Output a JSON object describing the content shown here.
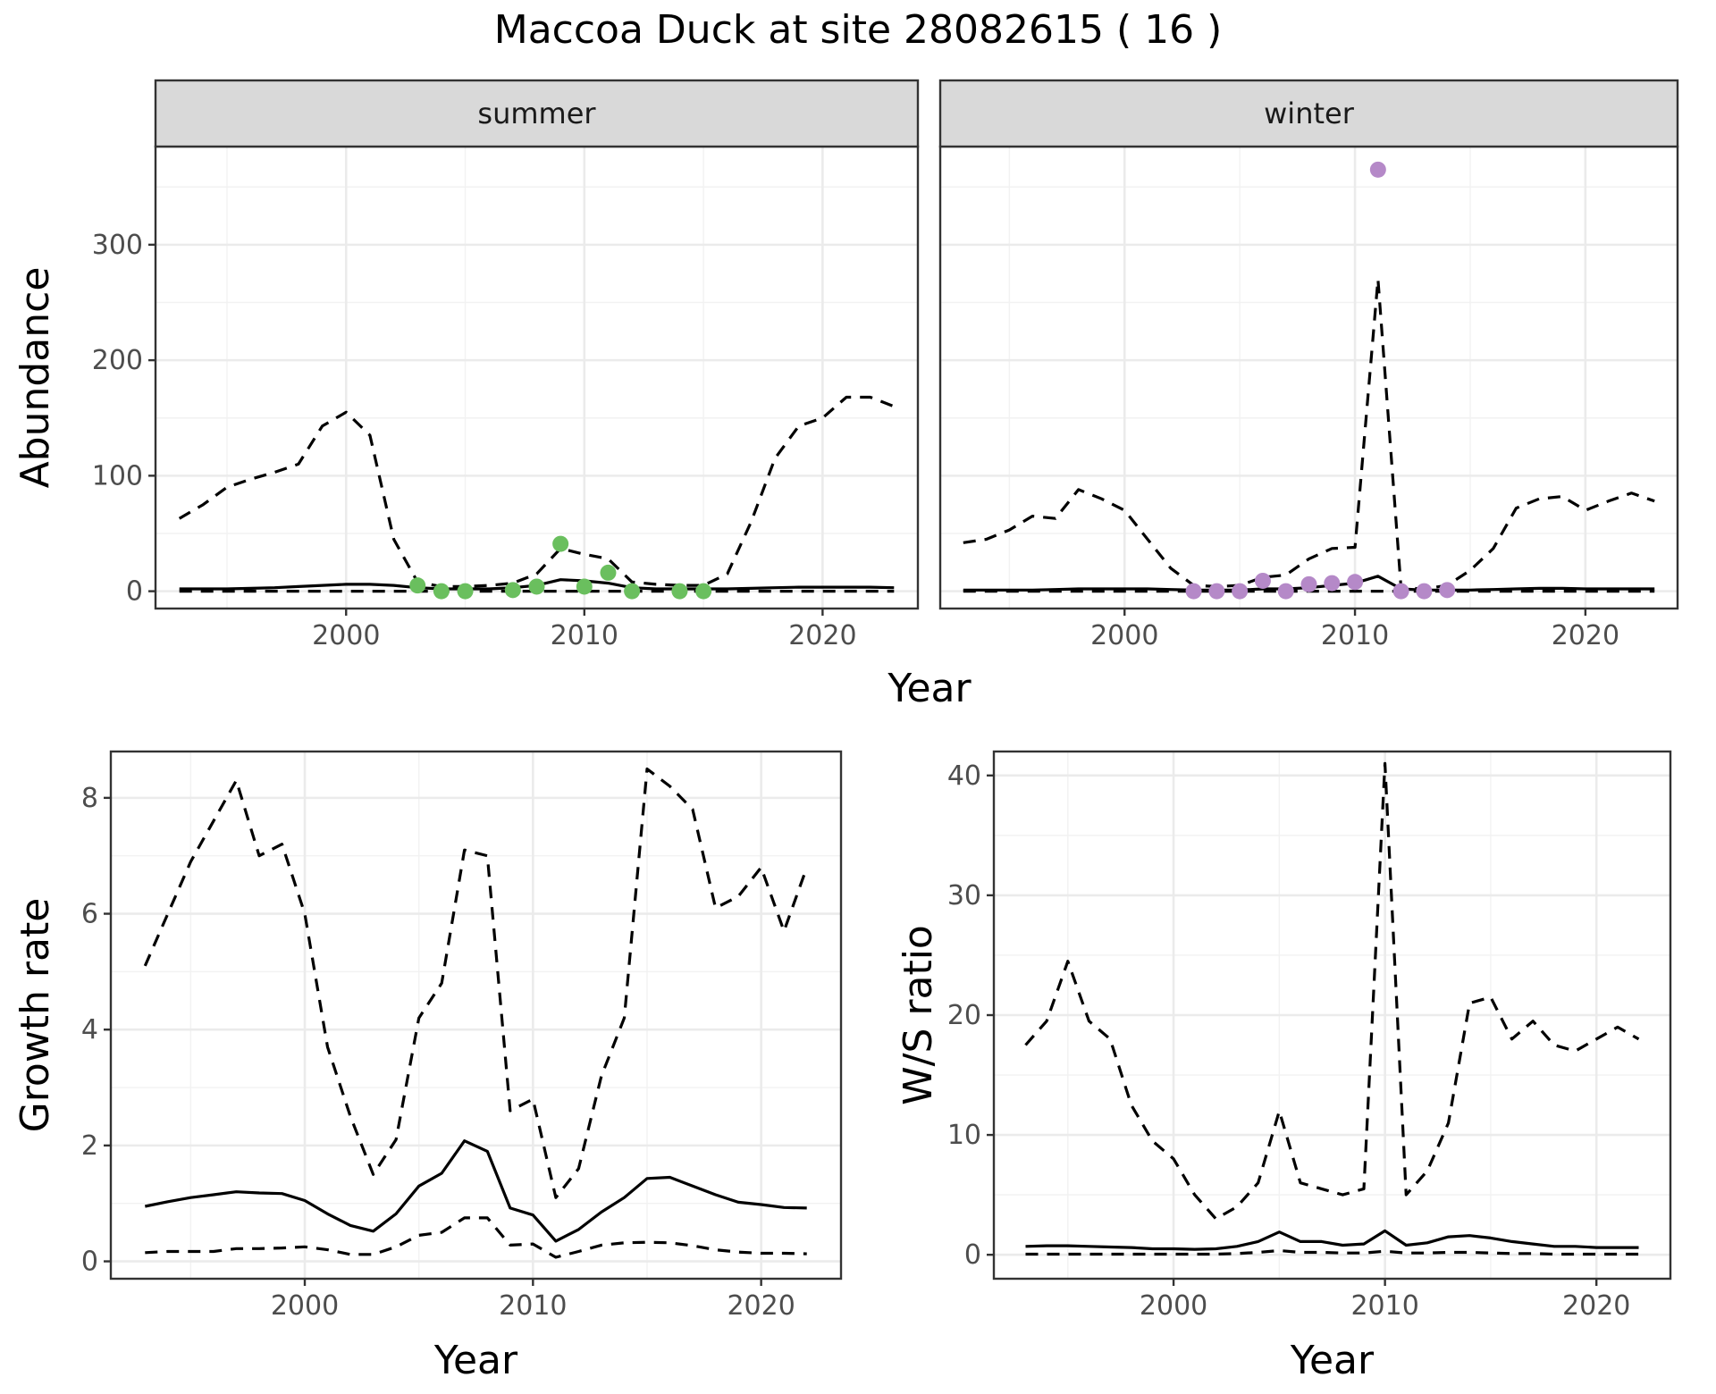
{
  "figure": {
    "title": "Maccoa Duck at site 28082615 ( 16 )"
  },
  "chart_data": [
    {
      "type": "line",
      "id": "summer",
      "facet_label": "summer",
      "xlabel": "",
      "ylabel": "Abundance",
      "xlim": [
        1992,
        2024
      ],
      "ylim": [
        -15,
        385
      ],
      "xticks": [
        2000,
        2010,
        2020
      ],
      "yticks": [
        0,
        100,
        200,
        300
      ],
      "point_color": "#6abf5e",
      "series": [
        {
          "role": "upper",
          "style": "dashed",
          "x": [
            1993,
            1994,
            1995,
            1996,
            1997,
            1998,
            1999,
            2000,
            2001,
            2002,
            2003,
            2004,
            2005,
            2006,
            2007,
            2008,
            2009,
            2010,
            2011,
            2012,
            2013,
            2014,
            2015,
            2016,
            2017,
            2018,
            2019,
            2020,
            2021,
            2022,
            2023
          ],
          "values": [
            63,
            75,
            90,
            97,
            103,
            110,
            143,
            155,
            135,
            45,
            8,
            4,
            4,
            5,
            7,
            15,
            37,
            32,
            28,
            8,
            6,
            5,
            5,
            15,
            60,
            115,
            143,
            150,
            168,
            168,
            160
          ]
        },
        {
          "role": "mean",
          "style": "solid",
          "x": [
            1993,
            1994,
            1995,
            1996,
            1997,
            1998,
            1999,
            2000,
            2001,
            2002,
            2003,
            2004,
            2005,
            2006,
            2007,
            2008,
            2009,
            2010,
            2011,
            2012,
            2013,
            2014,
            2015,
            2016,
            2017,
            2018,
            2019,
            2020,
            2021,
            2022,
            2023
          ],
          "values": [
            2,
            2,
            2,
            2.5,
            3,
            4,
            5,
            6,
            6,
            5,
            3,
            2,
            2,
            2,
            3,
            5,
            10,
            9,
            7,
            3,
            2,
            2,
            2,
            2,
            2.5,
            3,
            3.5,
            3.5,
            3.5,
            3.5,
            3
          ]
        },
        {
          "role": "lower",
          "style": "dashed",
          "x": [
            1993,
            1994,
            1995,
            1996,
            1997,
            1998,
            1999,
            2000,
            2001,
            2002,
            2003,
            2004,
            2005,
            2006,
            2007,
            2008,
            2009,
            2010,
            2011,
            2012,
            2013,
            2014,
            2015,
            2016,
            2017,
            2018,
            2019,
            2020,
            2021,
            2022,
            2023
          ],
          "values": [
            0,
            0,
            0,
            0,
            0,
            0,
            0,
            0,
            0,
            0,
            0,
            0,
            0,
            0,
            0,
            0,
            0,
            0,
            0,
            0,
            0,
            0,
            0,
            0,
            0,
            0,
            0,
            0,
            0,
            0,
            0
          ]
        }
      ],
      "points": {
        "x": [
          2003,
          2004,
          2005,
          2007,
          2008,
          2009,
          2010,
          2011,
          2012,
          2014,
          2015
        ],
        "values": [
          5,
          0,
          0,
          1,
          4,
          41,
          4,
          16,
          0,
          0,
          0
        ]
      }
    },
    {
      "type": "line",
      "id": "winter",
      "facet_label": "winter",
      "xlabel": "",
      "ylabel": "",
      "xlim": [
        1992,
        2024
      ],
      "ylim": [
        -15,
        385
      ],
      "xticks": [
        2000,
        2010,
        2020
      ],
      "yticks": [
        0,
        100,
        200,
        300
      ],
      "point_color": "#b589c8",
      "series": [
        {
          "role": "upper",
          "style": "dashed",
          "x": [
            1993,
            1994,
            1995,
            1996,
            1997,
            1998,
            1999,
            2000,
            2001,
            2002,
            2003,
            2004,
            2005,
            2006,
            2007,
            2008,
            2009,
            2010,
            2011,
            2012,
            2013,
            2014,
            2015,
            2016,
            2017,
            2018,
            2019,
            2020,
            2021,
            2022,
            2023
          ],
          "values": [
            42,
            45,
            53,
            65,
            63,
            88,
            80,
            70,
            45,
            20,
            5,
            4,
            5,
            12,
            14,
            28,
            37,
            38,
            270,
            3,
            2,
            5,
            18,
            37,
            72,
            80,
            82,
            70,
            78,
            85,
            78
          ]
        },
        {
          "role": "mean",
          "style": "solid",
          "x": [
            1993,
            1994,
            1995,
            1996,
            1997,
            1998,
            1999,
            2000,
            2001,
            2002,
            2003,
            2004,
            2005,
            2006,
            2007,
            2008,
            2009,
            2010,
            2011,
            2012,
            2013,
            2014,
            2015,
            2016,
            2017,
            2018,
            2019,
            2020,
            2021,
            2022,
            2023
          ],
          "values": [
            1,
            1,
            1,
            1,
            1.5,
            2,
            2,
            2,
            2,
            1.5,
            1,
            1,
            1,
            2,
            2,
            3,
            5,
            7,
            13,
            2,
            1,
            1,
            1,
            1.5,
            2,
            2.5,
            2.5,
            2,
            2,
            2,
            2
          ]
        },
        {
          "role": "lower",
          "style": "dashed",
          "x": [
            1993,
            1994,
            1995,
            1996,
            1997,
            1998,
            1999,
            2000,
            2001,
            2002,
            2003,
            2004,
            2005,
            2006,
            2007,
            2008,
            2009,
            2010,
            2011,
            2012,
            2013,
            2014,
            2015,
            2016,
            2017,
            2018,
            2019,
            2020,
            2021,
            2022,
            2023
          ],
          "values": [
            0,
            0,
            0,
            0,
            0,
            0,
            0,
            0,
            0,
            0,
            0,
            0,
            0,
            0,
            0,
            0,
            0,
            0,
            0,
            0,
            0,
            0,
            0,
            0,
            0,
            0,
            0,
            0,
            0,
            0,
            0
          ]
        }
      ],
      "points": {
        "x": [
          2003,
          2004,
          2005,
          2006,
          2007,
          2008,
          2009,
          2010,
          2011,
          2012,
          2013,
          2014
        ],
        "values": [
          0,
          0,
          0,
          9,
          0,
          6,
          7,
          8,
          365,
          0,
          0,
          1
        ]
      }
    },
    {
      "type": "line",
      "id": "growth",
      "xlabel": "Year",
      "ylabel": "Growth rate",
      "xlim": [
        1991.5,
        2023.5
      ],
      "ylim": [
        -0.3,
        8.8
      ],
      "xticks": [
        2000,
        2010,
        2020
      ],
      "yticks": [
        0,
        2,
        4,
        6,
        8
      ],
      "series": [
        {
          "role": "upper",
          "style": "dashed",
          "x": [
            1993,
            1994,
            1995,
            1996,
            1997,
            1998,
            1999,
            2000,
            2001,
            2002,
            2003,
            2004,
            2005,
            2006,
            2007,
            2008,
            2009,
            2010,
            2011,
            2012,
            2013,
            2014,
            2015,
            2016,
            2017,
            2018,
            2019,
            2020,
            2021,
            2022
          ],
          "values": [
            5.1,
            6,
            6.9,
            7.6,
            8.3,
            7,
            7.2,
            6,
            3.7,
            2.5,
            1.5,
            2.1,
            4.2,
            4.8,
            7.1,
            7,
            2.6,
            2.8,
            1.1,
            1.6,
            3.2,
            4.2,
            8.5,
            8.2,
            7.8,
            6.1,
            6.3,
            6.8,
            5.7,
            6.8
          ]
        },
        {
          "role": "mean",
          "style": "solid",
          "x": [
            1993,
            1994,
            1995,
            1996,
            1997,
            1998,
            1999,
            2000,
            2001,
            2002,
            2003,
            2004,
            2005,
            2006,
            2007,
            2008,
            2009,
            2010,
            2011,
            2012,
            2013,
            2014,
            2015,
            2016,
            2017,
            2018,
            2019,
            2020,
            2021,
            2022
          ],
          "values": [
            0.95,
            1.03,
            1.1,
            1.15,
            1.2,
            1.18,
            1.17,
            1.05,
            0.82,
            0.62,
            0.52,
            0.82,
            1.3,
            1.52,
            2.08,
            1.9,
            0.92,
            0.8,
            0.35,
            0.55,
            0.85,
            1.1,
            1.43,
            1.45,
            1.3,
            1.15,
            1.02,
            0.98,
            0.93,
            0.92
          ]
        },
        {
          "role": "lower",
          "style": "dashed",
          "x": [
            1993,
            1994,
            1995,
            1996,
            1997,
            1998,
            1999,
            2000,
            2001,
            2002,
            2003,
            2004,
            2005,
            2006,
            2007,
            2008,
            2009,
            2010,
            2011,
            2012,
            2013,
            2014,
            2015,
            2016,
            2017,
            2018,
            2019,
            2020,
            2021,
            2022
          ],
          "values": [
            0.15,
            0.17,
            0.17,
            0.17,
            0.22,
            0.22,
            0.23,
            0.25,
            0.2,
            0.12,
            0.12,
            0.25,
            0.45,
            0.5,
            0.75,
            0.75,
            0.28,
            0.3,
            0.07,
            0.17,
            0.28,
            0.32,
            0.33,
            0.32,
            0.27,
            0.2,
            0.16,
            0.14,
            0.14,
            0.13
          ]
        }
      ]
    },
    {
      "type": "line",
      "id": "ratio",
      "xlabel": "Year",
      "ylabel": "W/S ratio",
      "xlim": [
        1991.5,
        2023.5
      ],
      "ylim": [
        -2,
        42
      ],
      "xticks": [
        2000,
        2010,
        2020
      ],
      "yticks": [
        0,
        10,
        20,
        30,
        40
      ],
      "series": [
        {
          "role": "upper",
          "style": "dashed",
          "x": [
            1993,
            1994,
            1995,
            1996,
            1997,
            1998,
            1999,
            2000,
            2001,
            2002,
            2003,
            2004,
            2005,
            2006,
            2007,
            2008,
            2009,
            2010,
            2011,
            2012,
            2013,
            2014,
            2015,
            2016,
            2017,
            2018,
            2019,
            2020,
            2021,
            2022
          ],
          "values": [
            17.5,
            19.5,
            24.5,
            19.5,
            18,
            12.5,
            9.5,
            8,
            5,
            3,
            4,
            6,
            12,
            6,
            5.5,
            5,
            5.5,
            41,
            5,
            7,
            11,
            21,
            21.5,
            18,
            19.5,
            17.5,
            17,
            18,
            19,
            18
          ]
        },
        {
          "role": "mean",
          "style": "solid",
          "x": [
            1993,
            1994,
            1995,
            1996,
            1997,
            1998,
            1999,
            2000,
            2001,
            2002,
            2003,
            2004,
            2005,
            2006,
            2007,
            2008,
            2009,
            2010,
            2011,
            2012,
            2013,
            2014,
            2015,
            2016,
            2017,
            2018,
            2019,
            2020,
            2021,
            2022
          ],
          "values": [
            0.7,
            0.75,
            0.75,
            0.7,
            0.65,
            0.6,
            0.5,
            0.5,
            0.45,
            0.5,
            0.7,
            1.1,
            1.9,
            1.1,
            1.1,
            0.8,
            0.9,
            2,
            0.8,
            1,
            1.5,
            1.6,
            1.4,
            1.1,
            0.9,
            0.7,
            0.7,
            0.6,
            0.6,
            0.6
          ]
        },
        {
          "role": "lower",
          "style": "dashed",
          "x": [
            1993,
            1994,
            1995,
            1996,
            1997,
            1998,
            1999,
            2000,
            2001,
            2002,
            2003,
            2004,
            2005,
            2006,
            2007,
            2008,
            2009,
            2010,
            2011,
            2012,
            2013,
            2014,
            2015,
            2016,
            2017,
            2018,
            2019,
            2020,
            2021,
            2022
          ],
          "values": [
            0.05,
            0.05,
            0.05,
            0.05,
            0.05,
            0.05,
            0.05,
            0.05,
            0.05,
            0.05,
            0.1,
            0.2,
            0.35,
            0.2,
            0.2,
            0.15,
            0.15,
            0.3,
            0.15,
            0.15,
            0.2,
            0.2,
            0.15,
            0.1,
            0.1,
            0.05,
            0.05,
            0.05,
            0.05,
            0.05
          ]
        }
      ]
    }
  ],
  "shared_axes": {
    "top_xlabel": "Year"
  }
}
